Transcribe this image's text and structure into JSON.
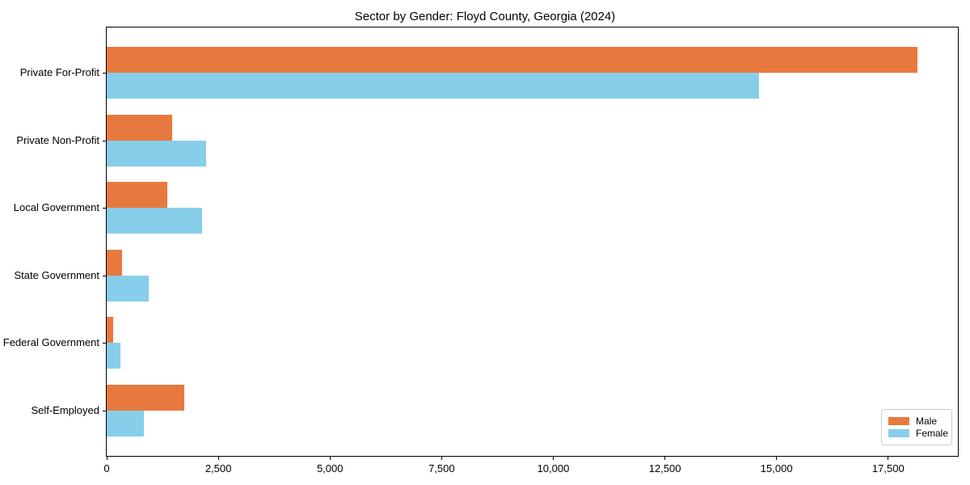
{
  "chart_data": {
    "type": "bar",
    "orientation": "horizontal",
    "title": "Sector by Gender: Floyd County, Georgia (2024)",
    "categories": [
      "Private For-Profit",
      "Private Non-Profit",
      "Local Government",
      "State Government",
      "Federal Government",
      "Self-Employed"
    ],
    "series": [
      {
        "name": "Male",
        "color": "#e8793e",
        "values": [
          18150,
          1470,
          1350,
          350,
          140,
          1730
        ]
      },
      {
        "name": "Female",
        "color": "#87ceeb",
        "values": [
          14600,
          2230,
          2140,
          950,
          300,
          840
        ]
      }
    ],
    "xlabel": "",
    "ylabel": "",
    "xlim": [
      0,
      19060
    ],
    "xticks": [
      0,
      2500,
      5000,
      7500,
      10000,
      12500,
      15000,
      17500
    ],
    "xtick_labels": [
      "0",
      "2,500",
      "5,000",
      "7,500",
      "10,000",
      "12,500",
      "15,000",
      "17,500"
    ],
    "grid": false,
    "legend": {
      "position": "lower right"
    }
  }
}
